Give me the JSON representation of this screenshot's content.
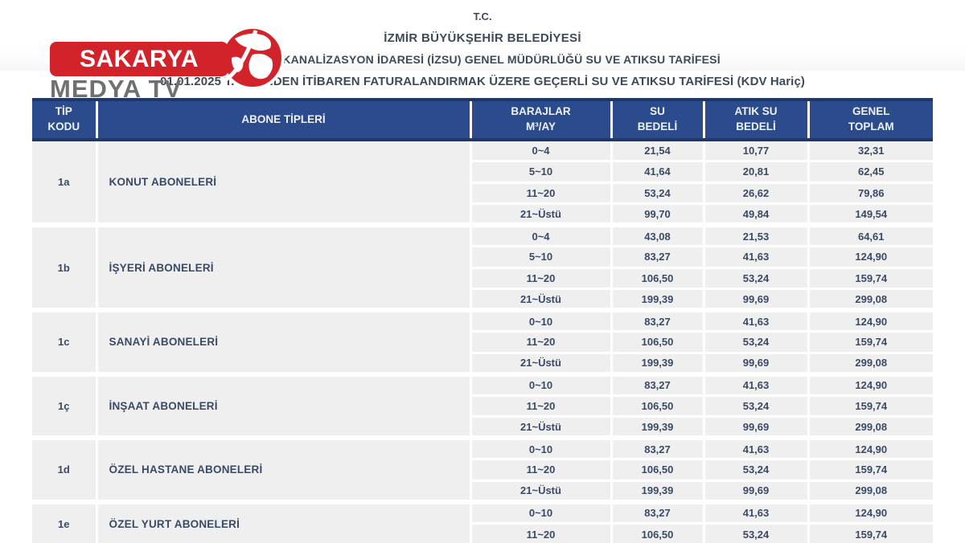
{
  "watermark": {
    "name": "Sakarya Medya TV logo",
    "line1": "SAKARYA",
    "line2": "MEDYA TV",
    "red": "#d2232a",
    "gray": "#6f7072"
  },
  "doc_header": {
    "line1": "T.C.",
    "line2": "İZMİR BÜYÜKŞEHİR BELEDİYESİ",
    "line3": "SU VE KANALİZASYON İDARESİ (İZSU) GENEL MÜDÜRLÜĞÜ SU VE ATIKSU TARİFESİ",
    "line4": "01.01.2025 TARİHİNDEN İTİBAREN FATURALANDIRMAK ÜZERE GEÇERLİ SU VE ATIKSU TARİFESİ (KDV Hariç)"
  },
  "table": {
    "header_bg": "#2b4b8c",
    "header_rule": "#1f3868",
    "cell_bg": "#efefef",
    "text_color": "#3a4a66",
    "columns": [
      {
        "l1": "TİP",
        "l2": "KODU"
      },
      {
        "l1": "ABONE TİPLERİ",
        "l2": ""
      },
      {
        "l1": "BARAJLAR",
        "l2": "M³/AY"
      },
      {
        "l1": "SU",
        "l2": "BEDELİ"
      },
      {
        "l1": "ATIK SU",
        "l2": "BEDELİ"
      },
      {
        "l1": "GENEL",
        "l2": "TOPLAM"
      }
    ],
    "groups": [
      {
        "code": "1a",
        "type": "KONUT ABONELERİ",
        "rows": [
          {
            "bracket": "0~4",
            "su": "21,54",
            "atik": "10,77",
            "toplam": "32,31"
          },
          {
            "bracket": "5~10",
            "su": "41,64",
            "atik": "20,81",
            "toplam": "62,45"
          },
          {
            "bracket": "11~20",
            "su": "53,24",
            "atik": "26,62",
            "toplam": "79,86"
          },
          {
            "bracket": "21~Üstü",
            "su": "99,70",
            "atik": "49,84",
            "toplam": "149,54"
          }
        ]
      },
      {
        "code": "1b",
        "type": "İŞYERİ ABONELERİ",
        "rows": [
          {
            "bracket": "0~4",
            "su": "43,08",
            "atik": "21,53",
            "toplam": "64,61"
          },
          {
            "bracket": "5~10",
            "su": "83,27",
            "atik": "41,63",
            "toplam": "124,90"
          },
          {
            "bracket": "11~20",
            "su": "106,50",
            "atik": "53,24",
            "toplam": "159,74"
          },
          {
            "bracket": "21~Üstü",
            "su": "199,39",
            "atik": "99,69",
            "toplam": "299,08"
          }
        ]
      },
      {
        "code": "1c",
        "type": "SANAYİ ABONELERİ",
        "rows": [
          {
            "bracket": "0~10",
            "su": "83,27",
            "atik": "41,63",
            "toplam": "124,90"
          },
          {
            "bracket": "11~20",
            "su": "106,50",
            "atik": "53,24",
            "toplam": "159,74"
          },
          {
            "bracket": "21~Üstü",
            "su": "199,39",
            "atik": "99,69",
            "toplam": "299,08"
          }
        ]
      },
      {
        "code": "1ç",
        "type": "İNŞAAT ABONELERİ",
        "rows": [
          {
            "bracket": "0~10",
            "su": "83,27",
            "atik": "41,63",
            "toplam": "124,90"
          },
          {
            "bracket": "11~20",
            "su": "106,50",
            "atik": "53,24",
            "toplam": "159,74"
          },
          {
            "bracket": "21~Üstü",
            "su": "199,39",
            "atik": "99,69",
            "toplam": "299,08"
          }
        ]
      },
      {
        "code": "1d",
        "type": "ÖZEL HASTANE ABONELERİ",
        "rows": [
          {
            "bracket": "0~10",
            "su": "83,27",
            "atik": "41,63",
            "toplam": "124,90"
          },
          {
            "bracket": "11~20",
            "su": "106,50",
            "atik": "53,24",
            "toplam": "159,74"
          },
          {
            "bracket": "21~Üstü",
            "su": "199,39",
            "atik": "99,69",
            "toplam": "299,08"
          }
        ]
      },
      {
        "code": "1e",
        "type": "ÖZEL YURT ABONELERİ",
        "rows": [
          {
            "bracket": "0~10",
            "su": "83,27",
            "atik": "41,63",
            "toplam": "124,90"
          },
          {
            "bracket": "11~20",
            "su": "106,50",
            "atik": "53,24",
            "toplam": "159,74"
          }
        ]
      }
    ]
  }
}
